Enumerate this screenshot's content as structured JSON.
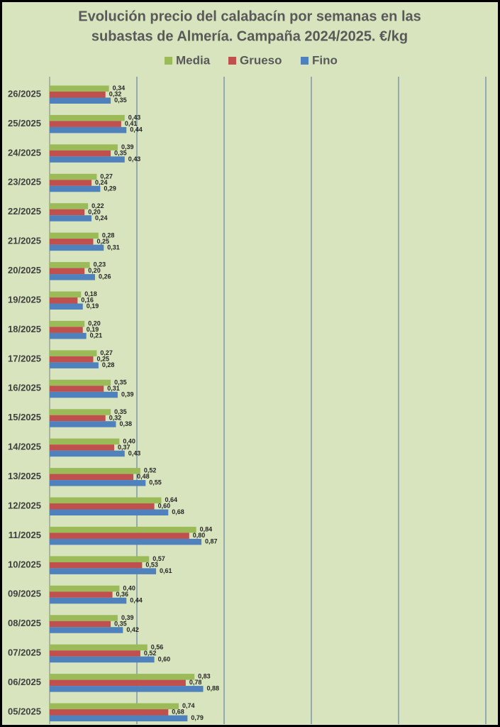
{
  "chart_data": {
    "type": "bar",
    "orientation": "horizontal",
    "title": "Evolución precio del calabacín por semanas en las",
    "subtitle": "subastas de Almería. Campaña 2024/2025. €/kg",
    "categories": [
      "26/2025",
      "25/2025",
      "24/2025",
      "23/2025",
      "22/2025",
      "21/2025",
      "20/2025",
      "19/2025",
      "18/2025",
      "17/2025",
      "16/2025",
      "15/2025",
      "14/2025",
      "13/2025",
      "12/2025",
      "11/2025",
      "10/2025",
      "09/2025",
      "08/2025",
      "07/2025",
      "06/2025",
      "05/2025"
    ],
    "series": [
      {
        "name": "Media",
        "color": "#9bbb59",
        "values": [
          0.34,
          0.43,
          0.39,
          0.27,
          0.22,
          0.28,
          0.23,
          0.18,
          0.2,
          0.27,
          0.35,
          0.35,
          0.4,
          0.52,
          0.64,
          0.84,
          0.57,
          0.4,
          0.39,
          0.56,
          0.83,
          0.74
        ],
        "value_labels": [
          "0,34",
          "0,43",
          "0,39",
          "0,27",
          "0,22",
          "0,28",
          "0,23",
          "0,18",
          "0,20",
          "0,27",
          "0,35",
          "0,35",
          "0,40",
          "0,52",
          "0,64",
          "0,84",
          "0,57",
          "0,40",
          "0,39",
          "0,56",
          "0,83",
          "0,74"
        ]
      },
      {
        "name": "Grueso",
        "color": "#c0504d",
        "values": [
          0.32,
          0.41,
          0.35,
          0.24,
          0.2,
          0.25,
          0.2,
          0.16,
          0.19,
          0.25,
          0.31,
          0.32,
          0.37,
          0.48,
          0.6,
          0.8,
          0.53,
          0.36,
          0.35,
          0.52,
          0.78,
          0.68
        ],
        "value_labels": [
          "0,32",
          "0,41",
          "0,35",
          "0,24",
          "0,20",
          "0,25",
          "0,20",
          "0,16",
          "0,19",
          "0,25",
          "0,31",
          "0,32",
          "0,37",
          "0,48",
          "0,60",
          "0,80",
          "0,53",
          "0,36",
          "0,35",
          "0,52",
          "0,78",
          "0,68"
        ]
      },
      {
        "name": "Fino",
        "color": "#4f81bd",
        "values": [
          0.35,
          0.44,
          0.43,
          0.29,
          0.24,
          0.31,
          0.26,
          0.19,
          0.21,
          0.28,
          0.39,
          0.38,
          0.43,
          0.55,
          0.68,
          0.87,
          0.61,
          0.44,
          0.42,
          0.6,
          0.88,
          0.79
        ],
        "value_labels": [
          "0,35",
          "0,44",
          "0,43",
          "0,29",
          "0,24",
          "0,31",
          "0,26",
          "0,19",
          "0,21",
          "0,28",
          "0,39",
          "0,38",
          "0,43",
          "0,55",
          "0,68",
          "0,87",
          "0,61",
          "0,44",
          "0,42",
          "0,60",
          "0,88",
          "0,79"
        ]
      }
    ],
    "xlim": [
      0,
      2.5
    ],
    "xticks": [
      0,
      0.5,
      1,
      1.5,
      2,
      2.5
    ],
    "grid": true
  }
}
